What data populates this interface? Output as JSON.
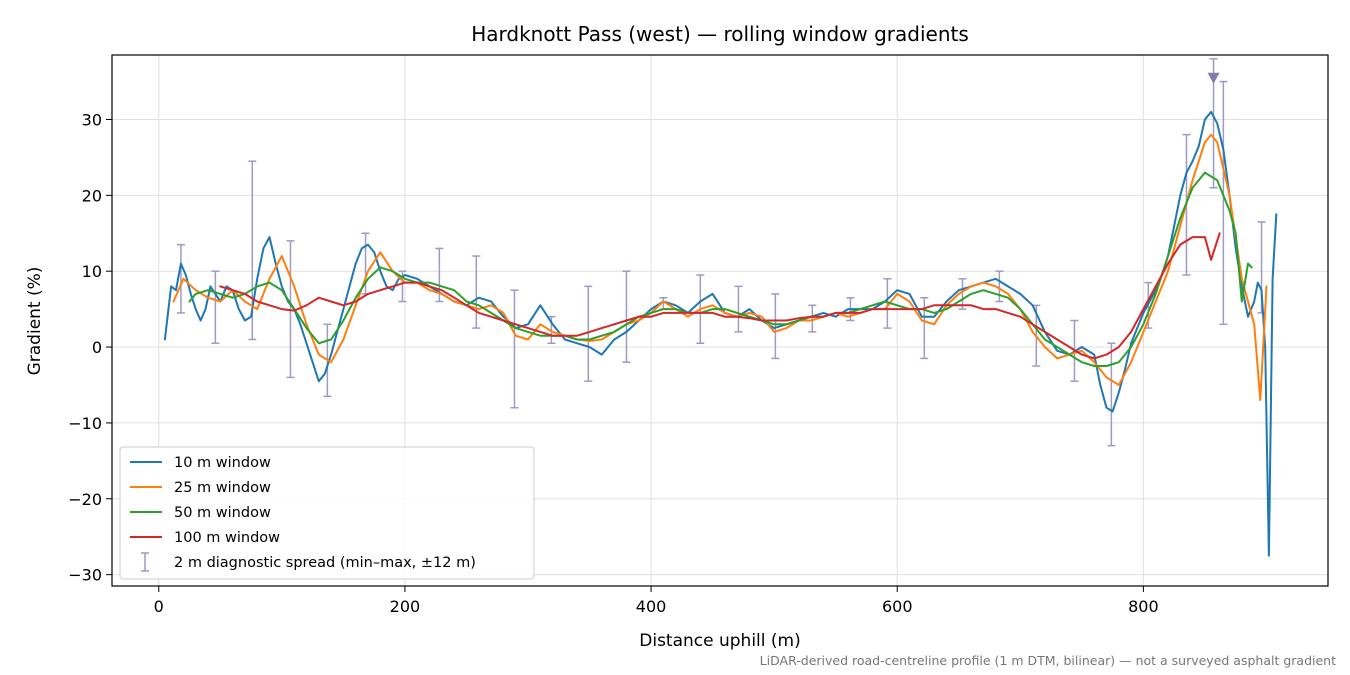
{
  "chart_data": {
    "type": "line",
    "title": "Hardknott Pass (west) — rolling window gradients",
    "xlabel": "Distance uphill (m)",
    "ylabel": "Gradient (%)",
    "note": "LiDAR-derived road-centreline profile (1 m DTM, bilinear) — not a surveyed asphalt gradient",
    "xlim": [
      -38,
      950
    ],
    "ylim": [
      -31.5,
      38.5
    ],
    "x_ticks": [
      0,
      200,
      400,
      600,
      800
    ],
    "y_ticks": [
      -30,
      -20,
      -10,
      0,
      10,
      20,
      30
    ],
    "x_tick_labels": [
      "0",
      "200",
      "400",
      "600",
      "800"
    ],
    "y_tick_labels": [
      "−30",
      "−20",
      "−10",
      "0",
      "10",
      "20",
      "30"
    ],
    "grid": true,
    "legend_position": "lower-left",
    "series": [
      {
        "name": "10 m window",
        "color": "#1f77b4",
        "x": [
          5,
          10,
          14,
          18,
          22,
          26,
          30,
          34,
          38,
          42,
          46,
          50,
          55,
          60,
          65,
          70,
          75,
          80,
          85,
          90,
          95,
          100,
          105,
          110,
          115,
          120,
          125,
          130,
          135,
          140,
          145,
          150,
          155,
          160,
          165,
          170,
          175,
          180,
          185,
          190,
          195,
          200,
          210,
          220,
          230,
          240,
          250,
          260,
          270,
          280,
          290,
          300,
          310,
          320,
          330,
          340,
          350,
          360,
          370,
          380,
          390,
          400,
          410,
          420,
          430,
          440,
          450,
          460,
          470,
          480,
          490,
          500,
          510,
          520,
          530,
          540,
          550,
          560,
          570,
          580,
          590,
          600,
          610,
          620,
          630,
          640,
          650,
          660,
          670,
          680,
          690,
          700,
          710,
          720,
          730,
          740,
          750,
          760,
          765,
          770,
          775,
          780,
          785,
          790,
          795,
          800,
          805,
          810,
          815,
          820,
          825,
          830,
          835,
          840,
          845,
          850,
          855,
          860,
          865,
          870,
          875,
          880,
          885,
          890,
          893,
          896,
          899,
          902,
          905,
          908
        ],
        "y": [
          1.0,
          8.0,
          7.5,
          11.0,
          9.5,
          7.0,
          5.0,
          3.5,
          5.0,
          8.0,
          7.0,
          6.0,
          8.0,
          7.5,
          5.0,
          3.5,
          4.0,
          9.0,
          13.0,
          14.5,
          11.0,
          8.0,
          6.0,
          5.0,
          3.0,
          0.5,
          -2.0,
          -4.5,
          -3.5,
          -1.0,
          2.0,
          5.0,
          8.0,
          11.0,
          13.0,
          13.5,
          12.5,
          10.0,
          8.0,
          7.5,
          9.0,
          9.5,
          9.0,
          8.0,
          7.0,
          6.0,
          5.5,
          6.5,
          6.0,
          4.0,
          2.5,
          3.0,
          5.5,
          3.0,
          1.0,
          0.5,
          0.0,
          -1.0,
          1.0,
          2.0,
          3.5,
          5.0,
          6.0,
          5.5,
          4.5,
          6.0,
          7.0,
          4.5,
          4.0,
          5.0,
          3.5,
          2.5,
          3.0,
          3.5,
          4.0,
          4.5,
          4.0,
          5.0,
          5.0,
          5.0,
          6.0,
          7.5,
          7.0,
          4.0,
          4.0,
          6.0,
          7.5,
          8.0,
          8.5,
          9.0,
          8.0,
          7.0,
          5.5,
          2.0,
          -0.5,
          -1.0,
          0.0,
          -1.0,
          -5.0,
          -8.0,
          -8.5,
          -6.0,
          -3.0,
          0.5,
          2.5,
          4.5,
          6.0,
          7.5,
          9.5,
          12.0,
          16.0,
          20.0,
          23.0,
          24.5,
          26.5,
          30.0,
          31.0,
          29.5,
          26.0,
          20.0,
          13.0,
          8.0,
          4.0,
          6.0,
          8.5,
          7.5,
          0.0,
          -27.5,
          9.0,
          17.5
        ]
      },
      {
        "name": "25 m window",
        "color": "#ff7f0e",
        "x": [
          12,
          20,
          30,
          40,
          50,
          60,
          70,
          80,
          90,
          100,
          110,
          120,
          130,
          140,
          150,
          160,
          170,
          180,
          190,
          200,
          210,
          220,
          230,
          240,
          250,
          260,
          270,
          280,
          290,
          300,
          310,
          320,
          330,
          340,
          350,
          360,
          370,
          380,
          390,
          400,
          410,
          420,
          430,
          440,
          450,
          460,
          470,
          480,
          490,
          500,
          510,
          520,
          530,
          540,
          550,
          560,
          570,
          580,
          590,
          600,
          610,
          620,
          630,
          640,
          650,
          660,
          670,
          680,
          690,
          700,
          710,
          720,
          730,
          740,
          750,
          760,
          770,
          780,
          790,
          800,
          810,
          820,
          830,
          840,
          850,
          855,
          860,
          870,
          880,
          890,
          895,
          900
        ],
        "y": [
          6.0,
          9.0,
          7.5,
          6.5,
          6.0,
          7.5,
          6.0,
          5.0,
          9.0,
          12.0,
          8.0,
          3.0,
          -1.0,
          -2.0,
          1.0,
          5.5,
          10.0,
          12.5,
          10.0,
          8.5,
          8.5,
          7.5,
          7.0,
          6.0,
          5.5,
          5.0,
          5.5,
          4.5,
          1.5,
          1.0,
          3.0,
          2.0,
          1.5,
          1.0,
          0.8,
          1.0,
          2.0,
          3.0,
          3.5,
          4.5,
          6.0,
          5.0,
          4.0,
          5.0,
          5.5,
          4.5,
          4.0,
          4.5,
          4.0,
          2.0,
          2.5,
          3.5,
          3.5,
          4.0,
          4.5,
          4.0,
          4.5,
          5.0,
          5.0,
          7.0,
          6.0,
          3.5,
          3.0,
          5.5,
          7.0,
          8.0,
          8.5,
          8.0,
          7.0,
          5.0,
          2.0,
          0.0,
          -1.5,
          -1.0,
          -0.5,
          -2.0,
          -4.0,
          -5.0,
          -2.0,
          2.0,
          6.0,
          10.0,
          16.0,
          22.0,
          27.0,
          28.0,
          27.0,
          20.0,
          9.0,
          3.0,
          -7.0,
          8.0
        ]
      },
      {
        "name": "50 m window",
        "color": "#2ca02c",
        "x": [
          25,
          30,
          40,
          50,
          60,
          70,
          80,
          90,
          100,
          110,
          120,
          130,
          140,
          150,
          160,
          170,
          180,
          190,
          200,
          210,
          220,
          230,
          240,
          250,
          260,
          270,
          280,
          290,
          300,
          310,
          320,
          330,
          340,
          350,
          360,
          370,
          380,
          390,
          400,
          410,
          420,
          430,
          440,
          450,
          460,
          470,
          480,
          490,
          500,
          510,
          520,
          530,
          540,
          550,
          560,
          570,
          580,
          590,
          600,
          610,
          620,
          630,
          640,
          650,
          660,
          670,
          680,
          690,
          700,
          710,
          720,
          730,
          740,
          750,
          760,
          770,
          780,
          790,
          800,
          810,
          820,
          830,
          840,
          850,
          860,
          870,
          875,
          880,
          885,
          888
        ],
        "y": [
          6.0,
          7.0,
          7.5,
          7.0,
          6.5,
          7.0,
          8.0,
          8.5,
          7.5,
          5.0,
          2.5,
          0.5,
          1.0,
          3.5,
          6.5,
          9.0,
          10.5,
          10.0,
          9.0,
          8.5,
          8.5,
          8.0,
          7.5,
          6.0,
          5.5,
          4.5,
          3.5,
          2.5,
          2.0,
          1.5,
          1.5,
          1.5,
          1.0,
          1.0,
          1.5,
          2.0,
          3.0,
          4.0,
          4.5,
          5.0,
          5.0,
          4.5,
          4.5,
          5.0,
          5.0,
          4.5,
          4.0,
          3.5,
          3.0,
          3.0,
          3.5,
          4.0,
          4.0,
          4.5,
          4.5,
          5.0,
          5.5,
          6.0,
          5.5,
          5.0,
          5.0,
          4.5,
          5.0,
          6.0,
          7.0,
          7.5,
          7.0,
          6.5,
          5.0,
          3.0,
          1.0,
          0.0,
          -1.0,
          -2.0,
          -2.5,
          -2.5,
          -2.0,
          0.0,
          3.0,
          7.0,
          12.0,
          17.0,
          21.0,
          23.0,
          22.0,
          18.0,
          15.0,
          6.0,
          11.0,
          10.5
        ]
      },
      {
        "name": "100 m window",
        "color": "#d62728",
        "x": [
          50,
          60,
          70,
          80,
          90,
          100,
          110,
          120,
          130,
          140,
          150,
          160,
          170,
          180,
          190,
          200,
          210,
          220,
          230,
          240,
          250,
          260,
          270,
          280,
          290,
          300,
          310,
          320,
          330,
          340,
          350,
          360,
          370,
          380,
          390,
          400,
          410,
          420,
          430,
          440,
          450,
          460,
          470,
          480,
          490,
          500,
          510,
          520,
          530,
          540,
          550,
          560,
          570,
          580,
          590,
          600,
          610,
          620,
          630,
          640,
          650,
          660,
          670,
          680,
          690,
          700,
          710,
          720,
          730,
          740,
          750,
          760,
          770,
          780,
          790,
          800,
          810,
          820,
          830,
          840,
          850,
          855,
          860,
          862
        ],
        "y": [
          8.0,
          7.5,
          7.0,
          6.0,
          5.5,
          5.0,
          4.8,
          5.5,
          6.5,
          6.0,
          5.5,
          6.0,
          7.0,
          7.5,
          8.0,
          8.5,
          8.5,
          8.0,
          7.5,
          6.5,
          5.5,
          4.5,
          4.0,
          3.5,
          3.0,
          2.5,
          2.0,
          1.5,
          1.5,
          1.5,
          2.0,
          2.5,
          3.0,
          3.5,
          4.0,
          4.0,
          4.5,
          4.5,
          4.5,
          4.5,
          4.5,
          4.0,
          4.0,
          3.8,
          3.5,
          3.5,
          3.5,
          3.8,
          4.0,
          4.0,
          4.5,
          4.5,
          4.5,
          5.0,
          5.0,
          5.0,
          5.0,
          5.0,
          5.5,
          5.5,
          5.5,
          5.5,
          5.0,
          5.0,
          4.5,
          4.0,
          3.0,
          2.0,
          1.0,
          0.0,
          -1.0,
          -1.5,
          -1.0,
          0.0,
          2.0,
          5.0,
          8.0,
          11.0,
          13.5,
          14.5,
          14.5,
          11.5,
          14.0,
          15.0
        ]
      }
    ],
    "error_bars": {
      "name": "2 m diagnostic spread (min–max, ±12 m)",
      "color": "#9e9ac8",
      "points": [
        {
          "x": 18,
          "low": 4.5,
          "high": 13.5
        },
        {
          "x": 46,
          "low": 0.5,
          "high": 10.0
        },
        {
          "x": 76,
          "low": 1.0,
          "high": 24.5
        },
        {
          "x": 107,
          "low": -4.0,
          "high": 14.0
        },
        {
          "x": 137,
          "low": -6.5,
          "high": 3.0
        },
        {
          "x": 168,
          "low": 7.0,
          "high": 15.0
        },
        {
          "x": 198,
          "low": 6.0,
          "high": 10.0
        },
        {
          "x": 228,
          "low": 6.0,
          "high": 13.0
        },
        {
          "x": 258,
          "low": 2.5,
          "high": 12.0
        },
        {
          "x": 289,
          "low": -8.0,
          "high": 7.5
        },
        {
          "x": 319,
          "low": 0.5,
          "high": 4.0
        },
        {
          "x": 349,
          "low": -4.5,
          "high": 8.0
        },
        {
          "x": 380,
          "low": -2.0,
          "high": 10.0
        },
        {
          "x": 410,
          "low": 5.0,
          "high": 6.5
        },
        {
          "x": 440,
          "low": 0.5,
          "high": 9.5
        },
        {
          "x": 471,
          "low": 2.0,
          "high": 8.0
        },
        {
          "x": 501,
          "low": -1.5,
          "high": 7.0
        },
        {
          "x": 531,
          "low": 2.0,
          "high": 5.5
        },
        {
          "x": 562,
          "low": 3.5,
          "high": 6.5
        },
        {
          "x": 592,
          "low": 2.5,
          "high": 9.0
        },
        {
          "x": 622,
          "low": -1.5,
          "high": 6.5
        },
        {
          "x": 653,
          "low": 5.0,
          "high": 9.0
        },
        {
          "x": 683,
          "low": 6.0,
          "high": 10.0
        },
        {
          "x": 713,
          "low": -2.5,
          "high": 5.5
        },
        {
          "x": 744,
          "low": -4.5,
          "high": 3.5
        },
        {
          "x": 774,
          "low": -13.0,
          "high": 0.5
        },
        {
          "x": 804,
          "low": 2.5,
          "high": 8.5
        },
        {
          "x": 835,
          "low": 9.5,
          "high": 28.0
        },
        {
          "x": 857,
          "low": 21.0,
          "high": 38.0
        },
        {
          "x": 865,
          "low": 3.0,
          "high": 35.0
        },
        {
          "x": 896,
          "low": 4.5,
          "high": 16.5
        }
      ]
    },
    "marker": {
      "x": 857,
      "y": 35.5,
      "shape": "triangle-down",
      "color": "#8878b0"
    }
  }
}
